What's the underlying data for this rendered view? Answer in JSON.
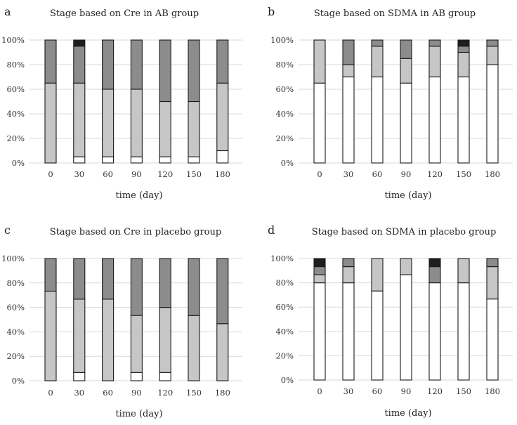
{
  "colors": {
    "stage_white": "#ffffff",
    "stage_light": "#c6c6c6",
    "stage_mid": "#8c8c8c",
    "stage_dark": "#1e1e1e",
    "bar_border": "#1a1a1a",
    "grid": "#d9d9d9"
  },
  "chart_data": [
    {
      "panel_label": "a",
      "type": "bar",
      "stacked": true,
      "title": "Stage based on Cre in AB group",
      "xlabel": "time (day)",
      "ylabel": "",
      "ylim": [
        0,
        100
      ],
      "yticks": [
        "0%",
        "20%",
        "40%",
        "60%",
        "80%",
        "100%"
      ],
      "categories": [
        "0",
        "30",
        "60",
        "90",
        "120",
        "150",
        "180"
      ],
      "series": [
        {
          "name": "stage-white",
          "color": "#ffffff",
          "values": [
            0,
            5,
            5,
            5,
            5,
            5,
            10
          ]
        },
        {
          "name": "stage-light",
          "color": "#c6c6c6",
          "values": [
            65,
            60,
            55,
            55,
            45,
            45,
            55
          ]
        },
        {
          "name": "stage-mid",
          "color": "#8c8c8c",
          "values": [
            35,
            30,
            40,
            40,
            50,
            50,
            35
          ]
        },
        {
          "name": "stage-dark",
          "color": "#1e1e1e",
          "values": [
            0,
            5,
            0,
            0,
            0,
            0,
            0
          ]
        }
      ]
    },
    {
      "panel_label": "b",
      "type": "bar",
      "stacked": true,
      "title": "Stage based on SDMA in AB group",
      "xlabel": "time (day)",
      "ylabel": "",
      "ylim": [
        0,
        100
      ],
      "yticks": [
        "0%",
        "20%",
        "40%",
        "60%",
        "80%",
        "100%"
      ],
      "categories": [
        "0",
        "30",
        "60",
        "90",
        "120",
        "150",
        "180"
      ],
      "series": [
        {
          "name": "stage-white",
          "color": "#ffffff",
          "values": [
            65,
            70,
            70,
            65,
            70,
            70,
            80
          ]
        },
        {
          "name": "stage-light",
          "color": "#c6c6c6",
          "values": [
            35,
            10,
            25,
            20,
            25,
            20,
            15
          ]
        },
        {
          "name": "stage-mid",
          "color": "#8c8c8c",
          "values": [
            0,
            20,
            5,
            15,
            5,
            5,
            5
          ]
        },
        {
          "name": "stage-dark",
          "color": "#1e1e1e",
          "values": [
            0,
            0,
            0,
            0,
            0,
            5,
            0
          ]
        }
      ]
    },
    {
      "panel_label": "c",
      "type": "bar",
      "stacked": true,
      "title": "Stage based on Cre in placebo group",
      "xlabel": "time (day)",
      "ylabel": "",
      "ylim": [
        0,
        100
      ],
      "yticks": [
        "0%",
        "20%",
        "40%",
        "60%",
        "80%",
        "100%"
      ],
      "categories": [
        "0",
        "30",
        "60",
        "90",
        "120",
        "150",
        "180"
      ],
      "series": [
        {
          "name": "stage-white",
          "color": "#ffffff",
          "values": [
            0,
            6.7,
            0,
            6.7,
            6.7,
            0,
            0
          ]
        },
        {
          "name": "stage-light",
          "color": "#c6c6c6",
          "values": [
            73.3,
            60,
            66.7,
            46.7,
            53.3,
            53.3,
            46.7
          ]
        },
        {
          "name": "stage-mid",
          "color": "#8c8c8c",
          "values": [
            26.7,
            33.3,
            33.3,
            46.6,
            40,
            46.7,
            53.3
          ]
        },
        {
          "name": "stage-dark",
          "color": "#1e1e1e",
          "values": [
            0,
            0,
            0,
            0,
            0,
            0,
            0
          ]
        }
      ]
    },
    {
      "panel_label": "d",
      "type": "bar",
      "stacked": true,
      "title": "Stage based on SDMA in placebo group",
      "xlabel": "time (day)",
      "ylabel": "",
      "ylim": [
        0,
        100
      ],
      "yticks": [
        "0%",
        "20%",
        "40%",
        "60%",
        "80%",
        "100%"
      ],
      "categories": [
        "0",
        "30",
        "60",
        "90",
        "120",
        "150",
        "180"
      ],
      "series": [
        {
          "name": "stage-white",
          "color": "#ffffff",
          "values": [
            80,
            80,
            73.3,
            86.7,
            80,
            80,
            66.7
          ]
        },
        {
          "name": "stage-light",
          "color": "#c6c6c6",
          "values": [
            6.7,
            13.3,
            26.7,
            13.3,
            0,
            20,
            26.6
          ]
        },
        {
          "name": "stage-mid",
          "color": "#8c8c8c",
          "values": [
            6.6,
            6.7,
            0,
            0,
            13.3,
            0,
            6.7
          ]
        },
        {
          "name": "stage-dark",
          "color": "#1e1e1e",
          "values": [
            6.7,
            0,
            0,
            0,
            6.7,
            0,
            0
          ]
        }
      ]
    }
  ]
}
